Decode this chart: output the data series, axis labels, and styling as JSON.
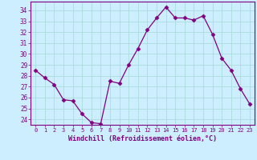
{
  "x": [
    0,
    1,
    2,
    3,
    4,
    5,
    6,
    7,
    8,
    9,
    10,
    11,
    12,
    13,
    14,
    15,
    16,
    17,
    18,
    19,
    20,
    21,
    22,
    23
  ],
  "y": [
    28.5,
    27.8,
    27.2,
    25.8,
    25.7,
    24.5,
    23.7,
    23.6,
    27.5,
    27.3,
    29.0,
    30.5,
    32.2,
    33.3,
    34.3,
    33.3,
    33.3,
    33.1,
    33.5,
    31.8,
    29.6,
    28.5,
    26.8,
    25.4
  ],
  "line_color": "#800080",
  "marker": "D",
  "marker_size": 2.5,
  "bg_color": "#cceeff",
  "grid_color": "#aadddd",
  "tick_color": "#800080",
  "label_color": "#800080",
  "xlabel": "Windchill (Refroidissement éolien,°C)",
  "ylim": [
    23.5,
    34.8
  ],
  "yticks": [
    24,
    25,
    26,
    27,
    28,
    29,
    30,
    31,
    32,
    33,
    34
  ],
  "xticks": [
    0,
    1,
    2,
    3,
    4,
    5,
    6,
    7,
    8,
    9,
    10,
    11,
    12,
    13,
    14,
    15,
    16,
    17,
    18,
    19,
    20,
    21,
    22,
    23
  ],
  "xtick_labels": [
    "0",
    "1",
    "2",
    "3",
    "4",
    "5",
    "6",
    "7",
    "8",
    "9",
    "10",
    "11",
    "12",
    "13",
    "14",
    "15",
    "16",
    "17",
    "18",
    "19",
    "20",
    "21",
    "22",
    "23"
  ]
}
